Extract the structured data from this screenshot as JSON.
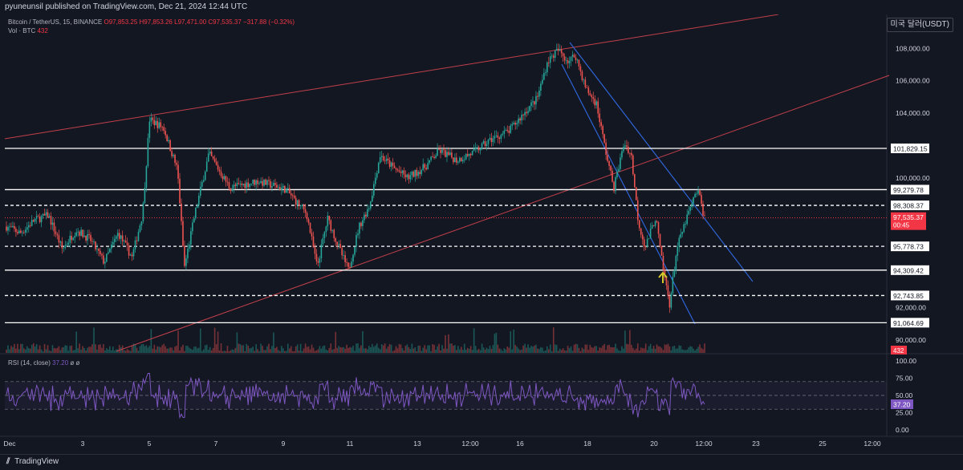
{
  "header": {
    "publisher_line": "pyuneunsil published on TradingView.com, Dec 21, 2024 12:44 UTC"
  },
  "legend": {
    "symbol": "Bitcoin / TetherUS, 15, BINANCE",
    "open": "O97,853.25",
    "high": "H97,853.26",
    "low": "L97,471.00",
    "close": "C97,535.37",
    "change": "−317.88 (−0.32%)",
    "volume_label": "Vol · BTC",
    "volume_value": "432"
  },
  "currency_button": "미국 달러(USDT)",
  "price_axis": {
    "ticks": [
      "108,000.00",
      "106,000.00",
      "104,000.00",
      "100,000.00",
      "92,000.00",
      "90,000.00"
    ],
    "level_labels": [
      "101,829.15",
      "99,279.78",
      "98,308.37",
      "95,778.73",
      "94,309.42",
      "92,743.85",
      "91,064.69"
    ],
    "current_price": "97,535.37",
    "countdown": "00:45",
    "volume_badge": "432"
  },
  "rsi": {
    "label": "RSI (14, close)",
    "value": "37.20",
    "extra": "ø ø",
    "axis_ticks": [
      "100.00",
      "75.00",
      "50.00",
      "25.00",
      "0.00"
    ],
    "badge": "37.20"
  },
  "time_axis": {
    "ticks": [
      "Dec",
      "3",
      "5",
      "7",
      "9",
      "11",
      "13",
      "12:00",
      "16",
      "18",
      "20",
      "12:00",
      "23",
      "25",
      "12:00"
    ]
  },
  "footer": {
    "brand": "TradingView"
  },
  "chart_data": {
    "type": "candlestick",
    "symbol": "BTC/USDT",
    "interval": "15",
    "y_range": [
      89200,
      109800
    ],
    "horizontal_levels": [
      {
        "price": 101829.15,
        "style": "solid"
      },
      {
        "price": 99279.78,
        "style": "solid"
      },
      {
        "price": 98308.37,
        "style": "dashed"
      },
      {
        "price": 95778.73,
        "style": "dashed"
      },
      {
        "price": 94309.42,
        "style": "solid"
      },
      {
        "price": 92743.85,
        "style": "dashed"
      },
      {
        "price": 91064.69,
        "style": "solid"
      }
    ],
    "current_price": 97535.37,
    "price_path": [
      {
        "t": 0,
        "p": 97000
      },
      {
        "t": 0.02,
        "p": 96600
      },
      {
        "t": 0.04,
        "p": 97400
      },
      {
        "t": 0.06,
        "p": 97700
      },
      {
        "t": 0.08,
        "p": 95600
      },
      {
        "t": 0.1,
        "p": 96800
      },
      {
        "t": 0.12,
        "p": 96200
      },
      {
        "t": 0.14,
        "p": 94800
      },
      {
        "t": 0.16,
        "p": 96600
      },
      {
        "t": 0.18,
        "p": 95100
      },
      {
        "t": 0.195,
        "p": 97800
      },
      {
        "t": 0.205,
        "p": 103600
      },
      {
        "t": 0.225,
        "p": 103100
      },
      {
        "t": 0.245,
        "p": 100500
      },
      {
        "t": 0.255,
        "p": 94500
      },
      {
        "t": 0.27,
        "p": 97800
      },
      {
        "t": 0.29,
        "p": 101500
      },
      {
        "t": 0.32,
        "p": 99400
      },
      {
        "t": 0.36,
        "p": 99800
      },
      {
        "t": 0.4,
        "p": 99300
      },
      {
        "t": 0.43,
        "p": 97800
      },
      {
        "t": 0.445,
        "p": 94500
      },
      {
        "t": 0.46,
        "p": 97500
      },
      {
        "t": 0.48,
        "p": 95300
      },
      {
        "t": 0.49,
        "p": 94300
      },
      {
        "t": 0.505,
        "p": 97000
      },
      {
        "t": 0.52,
        "p": 98300
      },
      {
        "t": 0.535,
        "p": 101400
      },
      {
        "t": 0.555,
        "p": 100600
      },
      {
        "t": 0.575,
        "p": 100000
      },
      {
        "t": 0.6,
        "p": 100700
      },
      {
        "t": 0.62,
        "p": 101700
      },
      {
        "t": 0.645,
        "p": 101100
      },
      {
        "t": 0.67,
        "p": 101600
      },
      {
        "t": 0.695,
        "p": 102400
      },
      {
        "t": 0.72,
        "p": 102900
      },
      {
        "t": 0.745,
        "p": 104200
      },
      {
        "t": 0.76,
        "p": 104900
      },
      {
        "t": 0.775,
        "p": 107200
      },
      {
        "t": 0.79,
        "p": 107900
      },
      {
        "t": 0.805,
        "p": 107200
      },
      {
        "t": 0.815,
        "p": 107600
      },
      {
        "t": 0.83,
        "p": 105500
      },
      {
        "t": 0.845,
        "p": 104600
      },
      {
        "t": 0.86,
        "p": 101300
      },
      {
        "t": 0.87,
        "p": 99400
      },
      {
        "t": 0.885,
        "p": 102200
      },
      {
        "t": 0.895,
        "p": 101400
      },
      {
        "t": 0.905,
        "p": 97300
      },
      {
        "t": 0.915,
        "p": 95700
      },
      {
        "t": 0.93,
        "p": 97600
      },
      {
        "t": 0.94,
        "p": 94500
      },
      {
        "t": 0.95,
        "p": 92200
      },
      {
        "t": 0.96,
        "p": 95600
      },
      {
        "t": 0.975,
        "p": 97600
      },
      {
        "t": 0.99,
        "p": 99300
      },
      {
        "t": 1.0,
        "p": 97535
      }
    ]
  }
}
